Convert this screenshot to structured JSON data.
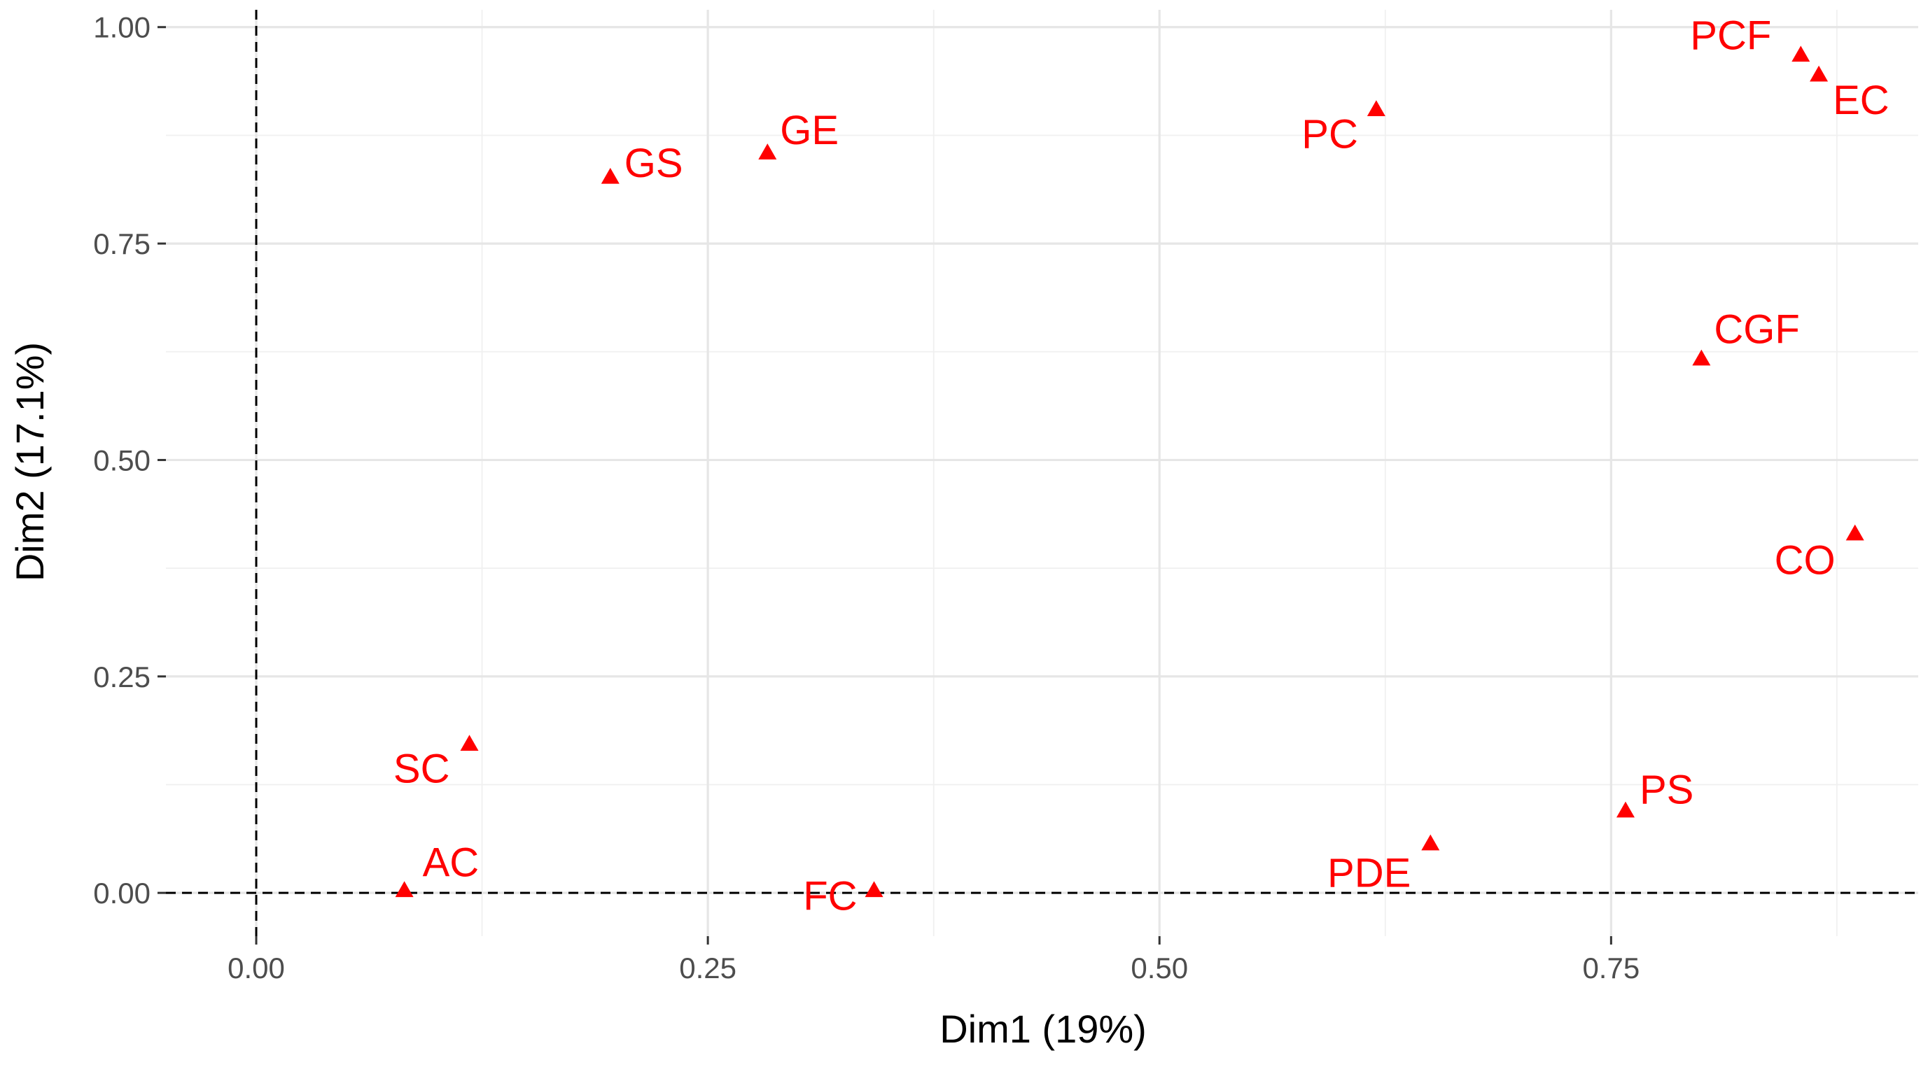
{
  "chart_data": {
    "type": "scatter",
    "xlabel": "Dim1 (19%)",
    "ylabel": "Dim2 (17.1%)",
    "xlim": [
      -0.05,
      0.92
    ],
    "ylim": [
      -0.05,
      1.02
    ],
    "x_ticks": [
      0.0,
      0.25,
      0.5,
      0.75
    ],
    "x_tick_labels": [
      "0.00",
      "0.25",
      "0.50",
      "0.75"
    ],
    "y_ticks": [
      0.0,
      0.25,
      0.5,
      0.75,
      1.0
    ],
    "y_tick_labels": [
      "0.00",
      "0.25",
      "0.50",
      "0.75",
      "1.00"
    ],
    "grid": true,
    "reference_lines": {
      "x": 0,
      "y": 0,
      "style": "dashed"
    },
    "marker": "triangle",
    "point_color": "#ff0000",
    "points": [
      {
        "label": "PCF",
        "x": 0.855,
        "y": 0.968
      },
      {
        "label": "EC",
        "x": 0.865,
        "y": 0.945
      },
      {
        "label": "PC",
        "x": 0.62,
        "y": 0.905
      },
      {
        "label": "GE",
        "x": 0.283,
        "y": 0.855
      },
      {
        "label": "GS",
        "x": 0.196,
        "y": 0.827
      },
      {
        "label": "CGF",
        "x": 0.8,
        "y": 0.617
      },
      {
        "label": "CO",
        "x": 0.885,
        "y": 0.415
      },
      {
        "label": "SC",
        "x": 0.118,
        "y": 0.172
      },
      {
        "label": "PS",
        "x": 0.758,
        "y": 0.095
      },
      {
        "label": "PDE",
        "x": 0.65,
        "y": 0.057
      },
      {
        "label": "AC",
        "x": 0.082,
        "y": 0.003
      },
      {
        "label": "FC",
        "x": 0.342,
        "y": 0.003
      }
    ]
  }
}
